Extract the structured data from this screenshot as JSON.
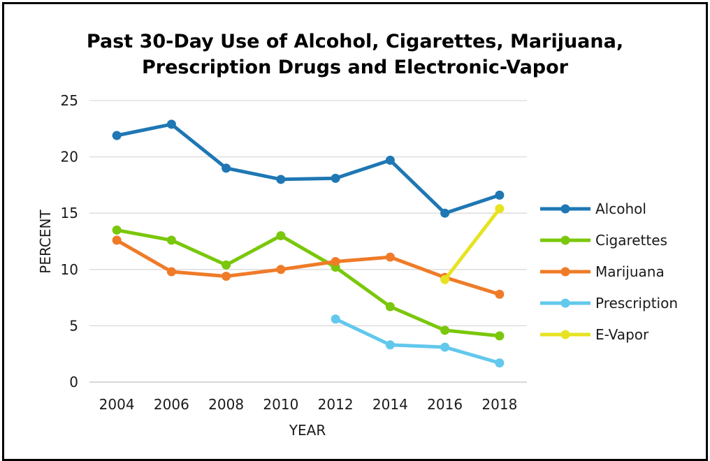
{
  "chart_data": {
    "type": "line",
    "title_line1": "Past 30-Day Use of Alcohol, Cigarettes, Marijuana,",
    "title_line2": "Prescription Drugs and Electronic-Vapor",
    "xlabel": "YEAR",
    "ylabel": "PERCENT",
    "ylim": [
      0,
      25
    ],
    "yticks": [
      0,
      5,
      10,
      15,
      20,
      25
    ],
    "categories": [
      "2004",
      "2006",
      "2008",
      "2010",
      "2012",
      "2014",
      "2016",
      "2018"
    ],
    "grid": true,
    "legend_position": "right",
    "series": [
      {
        "name": "Alcohol",
        "color": "#1f77b4",
        "values": [
          21.9,
          22.9,
          19.0,
          18.0,
          18.1,
          19.7,
          15.0,
          16.6
        ]
      },
      {
        "name": "Cigarettes",
        "color": "#7ac70c",
        "values": [
          13.5,
          12.6,
          10.4,
          13.0,
          10.2,
          6.7,
          4.6,
          4.1
        ]
      },
      {
        "name": "Marijuana",
        "color": "#ef7b28",
        "values": [
          12.6,
          9.8,
          9.4,
          10.0,
          10.7,
          11.1,
          9.3,
          7.8
        ]
      },
      {
        "name": "Prescription",
        "color": "#62c8ec",
        "values": [
          null,
          null,
          null,
          null,
          5.6,
          3.3,
          3.1,
          1.7
        ]
      },
      {
        "name": "E-Vapor",
        "color": "#e7e321",
        "values": [
          null,
          null,
          null,
          null,
          null,
          null,
          9.1,
          15.4
        ]
      }
    ]
  }
}
